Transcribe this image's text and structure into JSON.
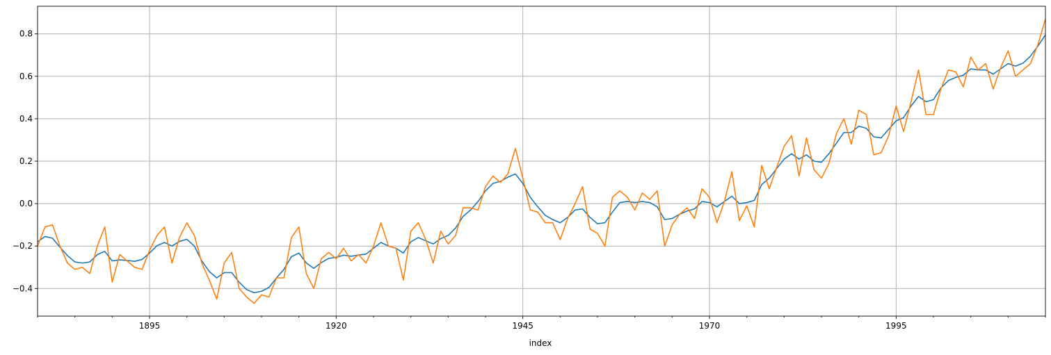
{
  "chart_data": {
    "type": "line",
    "title": "",
    "xlabel": "index",
    "ylabel": "",
    "xlim": [
      1880,
      2015
    ],
    "ylim": [
      -0.53,
      0.93
    ],
    "grid": true,
    "legend": "none",
    "x_ticks": [
      {
        "value": 1895,
        "label": "1895"
      },
      {
        "value": 1920,
        "label": "1920"
      },
      {
        "value": 1945,
        "label": "1945"
      },
      {
        "value": 1970,
        "label": "1970"
      },
      {
        "value": 1995,
        "label": "1995"
      }
    ],
    "y_ticks": [
      {
        "value": -0.4,
        "label": "−0.4"
      },
      {
        "value": -0.2,
        "label": "−0.2"
      },
      {
        "value": 0.0,
        "label": "0.0"
      },
      {
        "value": 0.2,
        "label": "0.2"
      },
      {
        "value": 0.4,
        "label": "0.4"
      },
      {
        "value": 0.6,
        "label": "0.6"
      },
      {
        "value": 0.8,
        "label": "0.8"
      }
    ],
    "x_start": 1880,
    "series": [
      {
        "color": "#1f77b4",
        "values": [
          -0.18,
          -0.155,
          -0.163,
          -0.205,
          -0.245,
          -0.275,
          -0.28,
          -0.275,
          -0.24,
          -0.225,
          -0.27,
          -0.265,
          -0.268,
          -0.272,
          -0.263,
          -0.233,
          -0.198,
          -0.183,
          -0.2,
          -0.178,
          -0.168,
          -0.2,
          -0.27,
          -0.32,
          -0.35,
          -0.325,
          -0.325,
          -0.37,
          -0.405,
          -0.42,
          -0.413,
          -0.395,
          -0.35,
          -0.31,
          -0.25,
          -0.233,
          -0.28,
          -0.305,
          -0.278,
          -0.258,
          -0.253,
          -0.243,
          -0.248,
          -0.242,
          -0.238,
          -0.21,
          -0.183,
          -0.2,
          -0.21,
          -0.233,
          -0.18,
          -0.16,
          -0.175,
          -0.19,
          -0.165,
          -0.15,
          -0.115,
          -0.06,
          -0.03,
          0.01,
          0.06,
          0.095,
          0.105,
          0.125,
          0.14,
          0.095,
          0.03,
          -0.015,
          -0.055,
          -0.075,
          -0.09,
          -0.065,
          -0.03,
          -0.025,
          -0.065,
          -0.095,
          -0.09,
          -0.04,
          0.005,
          0.01,
          0.005,
          0.01,
          0.005,
          -0.015,
          -0.075,
          -0.07,
          -0.05,
          -0.035,
          -0.025,
          0.01,
          0.005,
          -0.015,
          0.01,
          0.035,
          0.0,
          0.005,
          0.015,
          0.09,
          0.12,
          0.165,
          0.21,
          0.235,
          0.21,
          0.23,
          0.2,
          0.195,
          0.235,
          0.285,
          0.335,
          0.335,
          0.365,
          0.355,
          0.315,
          0.31,
          0.35,
          0.39,
          0.405,
          0.46,
          0.505,
          0.48,
          0.49,
          0.545,
          0.58,
          0.595,
          0.605,
          0.635,
          0.63,
          0.63,
          0.61,
          0.635,
          0.66,
          0.648,
          0.662,
          0.695,
          0.743,
          0.795
        ]
      },
      {
        "color": "#ff7f0e",
        "values": [
          -0.2,
          -0.11,
          -0.1,
          -0.2,
          -0.28,
          -0.31,
          -0.3,
          -0.33,
          -0.2,
          -0.11,
          -0.37,
          -0.24,
          -0.27,
          -0.3,
          -0.31,
          -0.22,
          -0.15,
          -0.11,
          -0.28,
          -0.16,
          -0.09,
          -0.15,
          -0.28,
          -0.36,
          -0.45,
          -0.28,
          -0.23,
          -0.4,
          -0.44,
          -0.47,
          -0.43,
          -0.44,
          -0.35,
          -0.35,
          -0.16,
          -0.11,
          -0.33,
          -0.4,
          -0.26,
          -0.23,
          -0.26,
          -0.21,
          -0.27,
          -0.24,
          -0.28,
          -0.2,
          -0.09,
          -0.2,
          -0.21,
          -0.36,
          -0.13,
          -0.09,
          -0.17,
          -0.28,
          -0.13,
          -0.19,
          -0.15,
          -0.02,
          -0.02,
          -0.03,
          0.08,
          0.13,
          0.1,
          0.14,
          0.26,
          0.12,
          -0.03,
          -0.04,
          -0.09,
          -0.09,
          -0.17,
          -0.07,
          0.0,
          0.08,
          -0.12,
          -0.14,
          -0.2,
          0.03,
          0.06,
          0.03,
          -0.03,
          0.05,
          0.02,
          0.06,
          -0.2,
          -0.1,
          -0.05,
          -0.02,
          -0.07,
          0.07,
          0.03,
          -0.09,
          0.01,
          0.15,
          -0.08,
          -0.01,
          -0.11,
          0.18,
          0.07,
          0.17,
          0.27,
          0.32,
          0.13,
          0.31,
          0.16,
          0.12,
          0.19,
          0.33,
          0.4,
          0.28,
          0.44,
          0.42,
          0.23,
          0.24,
          0.32,
          0.46,
          0.34,
          0.48,
          0.63,
          0.42,
          0.42,
          0.54,
          0.63,
          0.62,
          0.55,
          0.69,
          0.63,
          0.66,
          0.54,
          0.64,
          0.72,
          0.6,
          0.63,
          0.66,
          0.75,
          0.87
        ]
      }
    ]
  }
}
